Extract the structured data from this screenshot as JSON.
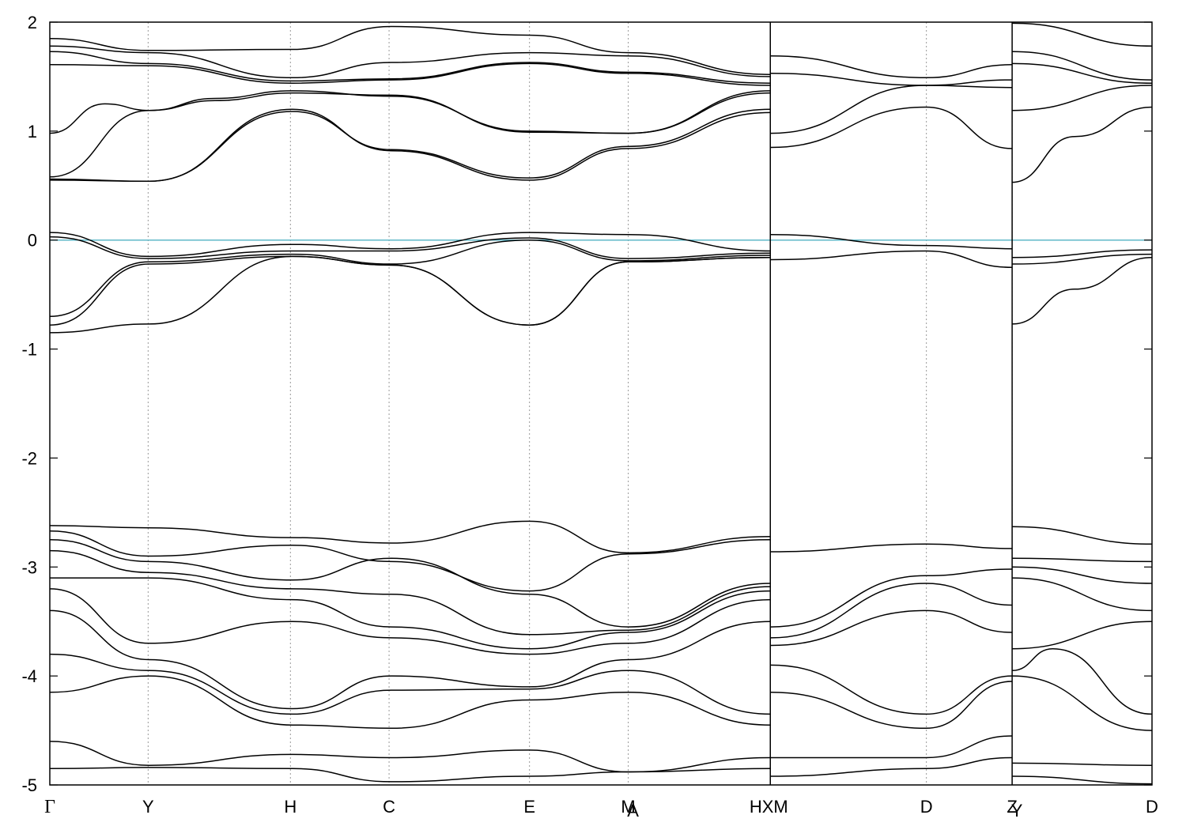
{
  "chart_data": {
    "type": "line",
    "title": "",
    "xlabel": "",
    "ylabel": "",
    "ylim": [
      -5,
      2
    ],
    "yticks": [
      2,
      1,
      0,
      -1,
      -2,
      -3,
      -4,
      -5
    ],
    "grid": "vertical dotted at high-symmetry points",
    "fermi_level": {
      "value": 0,
      "color": "#5fb8c8"
    },
    "band_color": "#000000",
    "xlim": [
      0,
      1
    ],
    "kpoints": [
      {
        "label": "Γ",
        "x": 0.0
      },
      {
        "label": "Y",
        "x": 0.0892
      },
      {
        "label": "H",
        "x": 0.2183
      },
      {
        "label": "C",
        "x": 0.3078
      },
      {
        "label": "E",
        "x": 0.4352
      },
      {
        "label": "M",
        "x": 0.5248
      },
      {
        "label": "A",
        "x": 0.5248
      },
      {
        "label": "H",
        "x": 0.6537
      },
      {
        "label": "X",
        "x": 0.6537
      },
      {
        "label": "M",
        "x": 0.6537
      },
      {
        "label": "D",
        "x": 0.7953
      },
      {
        "label": "Z",
        "x": 0.8731
      },
      {
        "label": "Y",
        "x": 0.8731
      },
      {
        "label": "D",
        "x": 1.0
      }
    ],
    "segments": [
      {
        "x0": 0.0,
        "x1": 0.6537,
        "series": [
          {
            "x": [
              0,
              0.09,
              0.22,
              0.31,
              0.435,
              0.525,
              0.654
            ],
            "y": [
              1.85,
              1.74,
              1.75,
              1.96,
              1.88,
              1.72,
              1.52
            ]
          },
          {
            "x": [
              0,
              0.09,
              0.22,
              0.31,
              0.435,
              0.525,
              0.654
            ],
            "y": [
              1.78,
              1.72,
              1.49,
              1.63,
              1.72,
              1.69,
              1.5
            ]
          },
          {
            "x": [
              0,
              0.09,
              0.22,
              0.31,
              0.435,
              0.525,
              0.654
            ],
            "y": [
              1.73,
              1.62,
              1.46,
              1.48,
              1.63,
              1.54,
              1.44
            ]
          },
          {
            "x": [
              0,
              0.09,
              0.22,
              0.31,
              0.435,
              0.525,
              0.654
            ],
            "y": [
              1.61,
              1.6,
              1.44,
              1.47,
              1.62,
              1.53,
              1.42
            ]
          },
          {
            "x": [
              0,
              0.05,
              0.09,
              0.15,
              0.22,
              0.31,
              0.435,
              0.525,
              0.654
            ],
            "y": [
              0.98,
              1.25,
              1.19,
              1.3,
              1.37,
              1.32,
              1.0,
              0.98,
              1.37
            ]
          },
          {
            "x": [
              0,
              0.09,
              0.15,
              0.22,
              0.31,
              0.435,
              0.525,
              0.654
            ],
            "y": [
              0.58,
              1.19,
              1.28,
              1.35,
              1.33,
              0.99,
              0.98,
              1.35
            ]
          },
          {
            "x": [
              0,
              0.09,
              0.22,
              0.31,
              0.435,
              0.525,
              0.654
            ],
            "y": [
              0.56,
              0.54,
              1.18,
              0.83,
              0.57,
              0.86,
              1.2
            ]
          },
          {
            "x": [
              0,
              0.09,
              0.22,
              0.31,
              0.435,
              0.525,
              0.654
            ],
            "y": [
              0.55,
              0.54,
              1.2,
              0.82,
              0.55,
              0.84,
              1.17
            ]
          },
          {
            "x": [
              0,
              0.09,
              0.22,
              0.31,
              0.435,
              0.525,
              0.654
            ],
            "y": [
              0.07,
              -0.15,
              -0.04,
              -0.08,
              0.07,
              0.05,
              -0.1
            ]
          },
          {
            "x": [
              0,
              0.09,
              0.22,
              0.31,
              0.435,
              0.525,
              0.654
            ],
            "y": [
              0.03,
              -0.17,
              -0.1,
              -0.1,
              0.02,
              -0.17,
              -0.12
            ]
          },
          {
            "x": [
              0,
              0.09,
              0.22,
              0.31,
              0.435,
              0.525,
              0.654
            ],
            "y": [
              -0.7,
              -0.2,
              -0.13,
              -0.22,
              0.0,
              -0.19,
              -0.14
            ]
          },
          {
            "x": [
              0,
              0.09,
              0.22,
              0.31,
              0.435,
              0.525,
              0.654
            ],
            "y": [
              -0.78,
              -0.22,
              -0.15,
              -0.23,
              -0.78,
              -0.2,
              -0.16
            ]
          },
          {
            "x": [
              0,
              0.09,
              0.22,
              0.31,
              0.435,
              0.525,
              0.654
            ],
            "y": [
              -0.85,
              -0.77,
              -0.15,
              -0.23,
              -0.78,
              -0.2,
              -0.16
            ]
          },
          {
            "x": [
              0,
              0.09,
              0.22,
              0.31,
              0.435,
              0.525,
              0.654
            ],
            "y": [
              -2.62,
              -2.64,
              -2.73,
              -2.78,
              -2.58,
              -2.87,
              -2.72
            ]
          },
          {
            "x": [
              0,
              0.09,
              0.22,
              0.31,
              0.435,
              0.525,
              0.654
            ],
            "y": [
              -2.67,
              -2.9,
              -2.8,
              -2.95,
              -3.22,
              -2.88,
              -2.75
            ]
          },
          {
            "x": [
              0,
              0.09,
              0.22,
              0.31,
              0.435,
              0.525,
              0.654
            ],
            "y": [
              -2.75,
              -2.95,
              -3.12,
              -2.92,
              -3.25,
              -3.55,
              -3.15
            ]
          },
          {
            "x": [
              0,
              0.09,
              0.22,
              0.31,
              0.435,
              0.525,
              0.654
            ],
            "y": [
              -2.85,
              -3.05,
              -3.2,
              -3.25,
              -3.62,
              -3.58,
              -3.18
            ]
          },
          {
            "x": [
              0,
              0.09,
              0.22,
              0.31,
              0.435,
              0.525,
              0.654
            ],
            "y": [
              -3.1,
              -3.1,
              -3.3,
              -3.55,
              -3.75,
              -3.6,
              -3.22
            ]
          },
          {
            "x": [
              0,
              0.09,
              0.22,
              0.31,
              0.435,
              0.525,
              0.654
            ],
            "y": [
              -3.2,
              -3.7,
              -3.5,
              -3.65,
              -3.8,
              -3.7,
              -3.3
            ]
          },
          {
            "x": [
              0,
              0.09,
              0.22,
              0.31,
              0.435,
              0.525,
              0.654
            ],
            "y": [
              -3.4,
              -3.85,
              -4.3,
              -4.0,
              -4.1,
              -3.85,
              -3.5
            ]
          },
          {
            "x": [
              0,
              0.09,
              0.22,
              0.31,
              0.435,
              0.525,
              0.654
            ],
            "y": [
              -3.8,
              -3.95,
              -4.35,
              -4.13,
              -4.12,
              -3.95,
              -4.35
            ]
          },
          {
            "x": [
              0,
              0.09,
              0.22,
              0.31,
              0.435,
              0.525,
              0.654
            ],
            "y": [
              -4.15,
              -4.0,
              -4.45,
              -4.48,
              -4.22,
              -4.15,
              -4.45
            ]
          },
          {
            "x": [
              0,
              0.09,
              0.22,
              0.31,
              0.435,
              0.525,
              0.654
            ],
            "y": [
              -4.6,
              -4.82,
              -4.72,
              -4.75,
              -4.68,
              -4.88,
              -4.75
            ]
          },
          {
            "x": [
              0,
              0.09,
              0.22,
              0.31,
              0.435,
              0.525,
              0.654
            ],
            "y": [
              -4.85,
              -4.84,
              -4.85,
              -4.97,
              -4.92,
              -4.88,
              -4.85
            ]
          }
        ]
      },
      {
        "x0": 0.6537,
        "x1": 0.8731,
        "series": [
          {
            "x": [
              0.654,
              0.795,
              0.873
            ],
            "y": [
              1.69,
              1.49,
              1.61
            ]
          },
          {
            "x": [
              0.654,
              0.795,
              0.873
            ],
            "y": [
              1.53,
              1.42,
              1.47
            ]
          },
          {
            "x": [
              0.654,
              0.795,
              0.873
            ],
            "y": [
              0.98,
              1.42,
              1.4
            ]
          },
          {
            "x": [
              0.654,
              0.795,
              0.873
            ],
            "y": [
              0.85,
              1.22,
              0.84
            ]
          },
          {
            "x": [
              0.654,
              0.795,
              0.873
            ],
            "y": [
              0.05,
              -0.05,
              -0.08
            ]
          },
          {
            "x": [
              0.654,
              0.795,
              0.873
            ],
            "y": [
              -0.18,
              -0.1,
              -0.25
            ]
          },
          {
            "x": [
              0.654,
              0.795,
              0.873
            ],
            "y": [
              -2.86,
              -2.79,
              -2.83
            ]
          },
          {
            "x": [
              0.654,
              0.795,
              0.873
            ],
            "y": [
              -3.55,
              -3.08,
              -3.02
            ]
          },
          {
            "x": [
              0.654,
              0.795,
              0.873
            ],
            "y": [
              -3.65,
              -3.15,
              -3.35
            ]
          },
          {
            "x": [
              0.654,
              0.795,
              0.873
            ],
            "y": [
              -3.72,
              -3.4,
              -3.6
            ]
          },
          {
            "x": [
              0.654,
              0.795,
              0.873
            ],
            "y": [
              -3.9,
              -4.35,
              -4.0
            ]
          },
          {
            "x": [
              0.654,
              0.795,
              0.873
            ],
            "y": [
              -4.15,
              -4.48,
              -4.05
            ]
          },
          {
            "x": [
              0.654,
              0.795,
              0.873
            ],
            "y": [
              -4.75,
              -4.75,
              -4.55
            ]
          },
          {
            "x": [
              0.654,
              0.795,
              0.873
            ],
            "y": [
              -4.92,
              -4.85,
              -4.75
            ]
          }
        ]
      },
      {
        "x0": 0.8731,
        "x1": 1.0,
        "series": [
          {
            "x": [
              0.873,
              1.0
            ],
            "y": [
              1.99,
              1.78
            ]
          },
          {
            "x": [
              0.873,
              1.0
            ],
            "y": [
              1.73,
              1.47
            ]
          },
          {
            "x": [
              0.873,
              1.0
            ],
            "y": [
              1.62,
              1.44
            ]
          },
          {
            "x": [
              0.873,
              1.0
            ],
            "y": [
              1.19,
              1.42
            ]
          },
          {
            "x": [
              0.873,
              0.93,
              1.0
            ],
            "y": [
              0.53,
              0.95,
              1.22
            ]
          },
          {
            "x": [
              0.873,
              1.0
            ],
            "y": [
              -0.16,
              -0.09
            ]
          },
          {
            "x": [
              0.873,
              1.0
            ],
            "y": [
              -0.22,
              -0.13
            ]
          },
          {
            "x": [
              0.873,
              0.93,
              1.0
            ],
            "y": [
              -0.77,
              -0.45,
              -0.16
            ]
          },
          {
            "x": [
              0.873,
              1.0
            ],
            "y": [
              -2.63,
              -2.79
            ]
          },
          {
            "x": [
              0.873,
              1.0
            ],
            "y": [
              -2.92,
              -2.95
            ]
          },
          {
            "x": [
              0.873,
              1.0
            ],
            "y": [
              -3.0,
              -3.15
            ]
          },
          {
            "x": [
              0.873,
              1.0
            ],
            "y": [
              -3.1,
              -3.4
            ]
          },
          {
            "x": [
              0.873,
              1.0
            ],
            "y": [
              -3.75,
              -3.5
            ]
          },
          {
            "x": [
              0.873,
              0.91,
              1.0
            ],
            "y": [
              -3.95,
              -3.75,
              -4.35
            ]
          },
          {
            "x": [
              0.873,
              1.0
            ],
            "y": [
              -4.0,
              -4.5
            ]
          },
          {
            "x": [
              0.873,
              1.0
            ],
            "y": [
              -4.8,
              -4.82
            ]
          },
          {
            "x": [
              0.873,
              1.0
            ],
            "y": [
              -4.92,
              -4.99
            ]
          }
        ]
      }
    ]
  }
}
